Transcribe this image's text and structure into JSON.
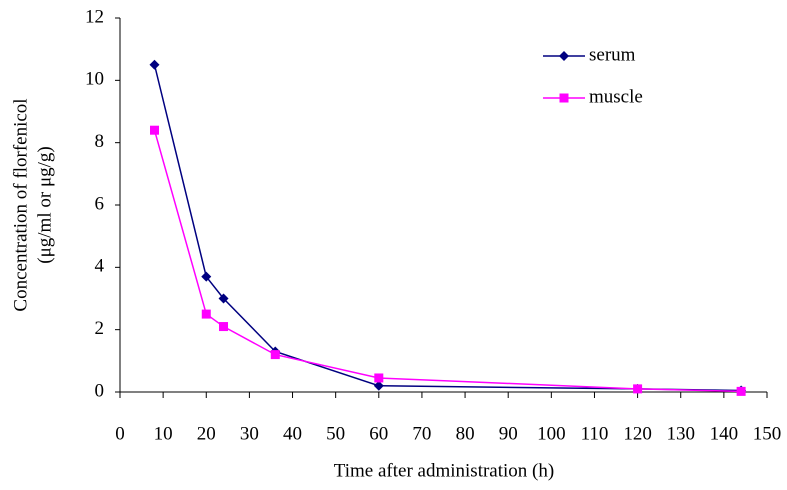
{
  "chart_data": {
    "type": "line",
    "x_label": "Time after administration (h)",
    "y_label": [
      "Concentration of florfenicol",
      "(μg/ml or μg/g)"
    ],
    "x": [
      8,
      20,
      24,
      36,
      60,
      120,
      144
    ],
    "series": [
      {
        "name": "serum",
        "color": "#000080",
        "marker": "diamond",
        "values": [
          10.5,
          3.7,
          3.0,
          1.3,
          0.2,
          0.1,
          0.05
        ]
      },
      {
        "name": "muscle",
        "color": "#ff00ff",
        "marker": "square",
        "values": [
          8.4,
          2.5,
          2.1,
          1.2,
          0.45,
          0.1,
          0.02
        ]
      }
    ],
    "xlim": [
      0,
      150
    ],
    "xticks": [
      0,
      10,
      20,
      30,
      40,
      50,
      60,
      70,
      80,
      90,
      100,
      110,
      120,
      130,
      140,
      150
    ],
    "ylim": [
      0,
      12
    ],
    "yticks": [
      0,
      2,
      4,
      6,
      8,
      10,
      12
    ],
    "legend": "upper right",
    "grid": false
  }
}
